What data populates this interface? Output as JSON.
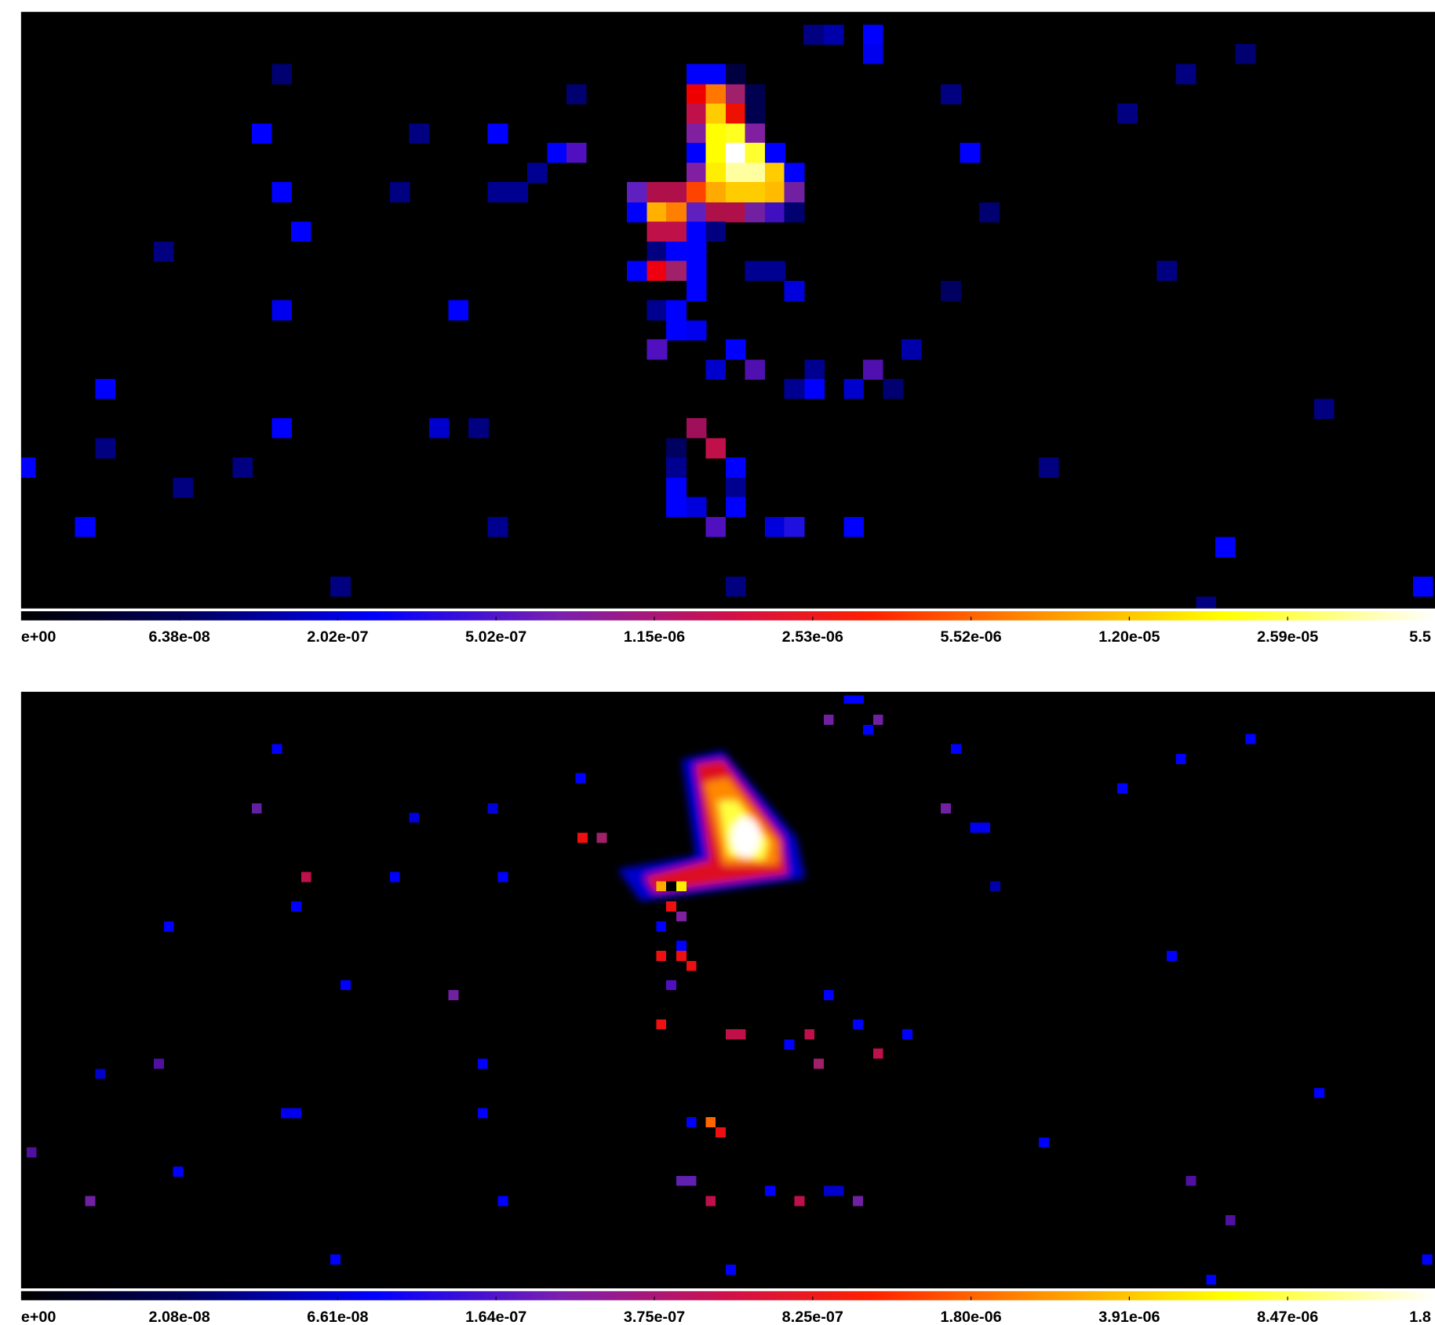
{
  "panels": [
    {
      "colorbar": {
        "ticks": [
          "e+00",
          "6.38e-08",
          "2.02e-07",
          "5.02e-07",
          "1.15e-06",
          "2.53e-06",
          "5.52e-06",
          "1.20e-05",
          "2.59e-05",
          "5.5"
        ]
      }
    },
    {
      "colorbar": {
        "ticks": [
          "e+00",
          "2.08e-08",
          "6.61e-08",
          "1.64e-07",
          "3.75e-07",
          "8.25e-07",
          "1.80e-06",
          "3.91e-06",
          "8.47e-06",
          "1.8"
        ]
      }
    }
  ]
}
